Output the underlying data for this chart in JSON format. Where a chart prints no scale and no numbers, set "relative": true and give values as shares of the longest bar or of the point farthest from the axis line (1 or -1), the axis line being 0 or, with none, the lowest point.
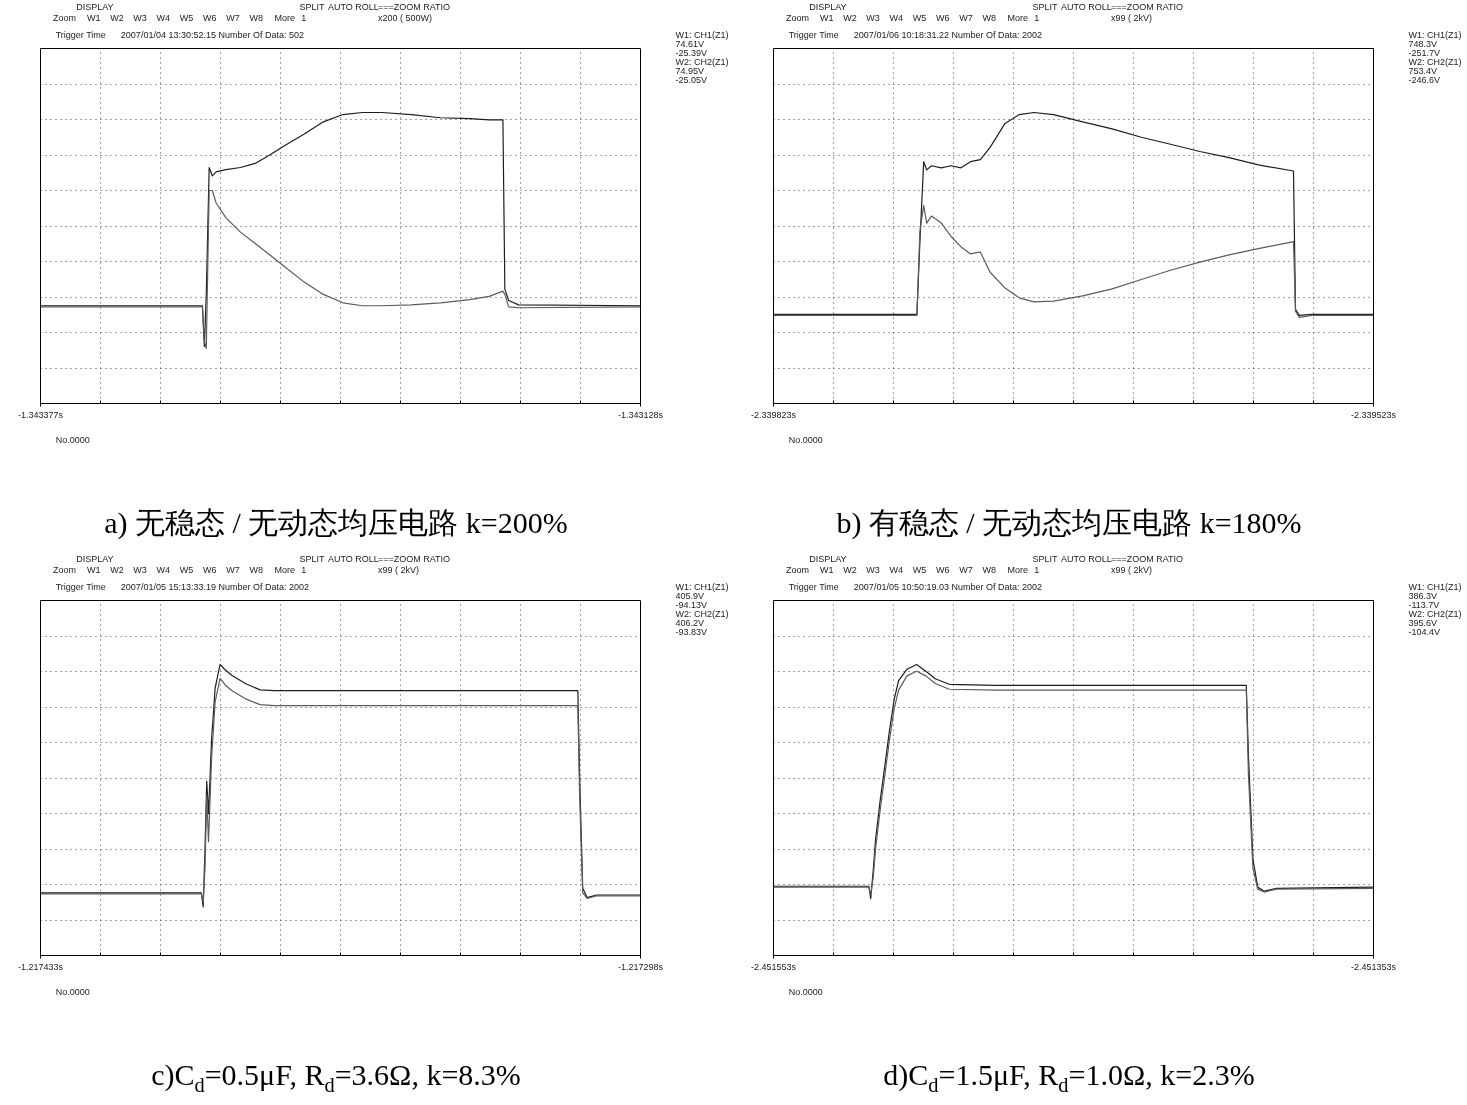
{
  "chart_data": [
    {
      "type": "line",
      "title": "a) 无稳态 / 无动态均压电路 k=200%",
      "relative": true,
      "tick_labels": "x",
      "grid": true,
      "x": [
        -1.343377,
        -1.3433098,
        -1.343309,
        -1.3433082,
        -1.343307,
        -1.3433057,
        -1.3433041,
        -1.3433001,
        -1.343294,
        -1.3432879,
        -1.3432819,
        -1.3432758,
        -1.3432677,
        -1.3432596,
        -1.3432515,
        -1.3432434,
        -1.3432353,
        -1.3432231,
        -1.343211,
        -1.3431989,
        -1.3431908,
        -1.3431851,
        -1.3431843,
        -1.3431827,
        -1.3431786,
        -1.343128
      ],
      "xlim": [
        -1.343377,
        -1.343128
      ],
      "xticks": [
        {
          "value": -1.343377,
          "label": "-1.343377s"
        },
        {
          "value": -1.3433521,
          "label": null
        },
        {
          "value": -1.3433272,
          "label": null
        },
        {
          "value": -1.3433023,
          "label": null
        },
        {
          "value": -1.3432774,
          "label": null
        },
        {
          "value": -1.3432525,
          "label": null
        },
        {
          "value": -1.3432276,
          "label": null
        },
        {
          "value": -1.3432027,
          "label": null
        },
        {
          "value": -1.3431778,
          "label": null
        },
        {
          "value": -1.3431529,
          "label": null
        },
        {
          "value": -1.343128,
          "label": "-1.343128s"
        }
      ],
      "series": [
        {
          "color": "#1e1e1e",
          "values": [
            0.336,
            0.336,
            0.196,
            0.375,
            0.811,
            0.782,
            0.796,
            0.804,
            0.811,
            0.825,
            0.854,
            0.886,
            0.925,
            0.968,
            0.993,
            1.0,
            1.0,
            0.993,
            0.982,
            0.979,
            0.975,
            0.975,
            0.393,
            0.354,
            0.339,
            0.336
          ]
        },
        {
          "color": "#5c5c5c",
          "values": [
            0.332,
            0.332,
            0.214,
            0.189,
            0.732,
            0.732,
            0.689,
            0.639,
            0.589,
            0.55,
            0.511,
            0.471,
            0.418,
            0.375,
            0.346,
            0.336,
            0.336,
            0.339,
            0.346,
            0.357,
            0.368,
            0.386,
            0.375,
            0.332,
            0.329,
            0.332
          ]
        }
      ],
      "annotations": [
        "Zoom",
        "DISPLAY",
        "W1",
        "W2",
        "W3",
        "W4",
        "W5",
        "W6",
        "W7",
        "W8",
        "More",
        "SPLIT",
        "1",
        "AUTO ROLL",
        "===ZOOM RATIO",
        "x200 ( 500W)",
        "Trigger Time",
        "2007/01/04 13:30:52.15 Number Of Data: 502",
        "W1: CH1(Z1)",
        "74.61V",
        "-25.39V",
        "W2: CH2(Z1)",
        "74.95V",
        "-25.05V",
        "No.0000"
      ]
    },
    {
      "type": "line",
      "title": "b) 有稳态 / 无动态均压电路 k=180%",
      "relative": true,
      "tick_labels": "x",
      "grid": true,
      "x": [
        -2.339823,
        -2.3397513,
        -2.3397498,
        -2.3397479,
        -2.3397464,
        -2.339744,
        -2.3397391,
        -2.3397342,
        -2.3397293,
        -2.3397245,
        -2.3397196,
        -2.3397147,
        -2.3397074,
        -2.3397001,
        -2.3396928,
        -2.339683,
        -2.3396684,
        -2.3396537,
        -2.3396391,
        -2.3396245,
        -2.3396098,
        -2.3395952,
        -2.3395806,
        -2.339563,
        -2.339562,
        -2.3395601,
        -2.3395537,
        -2.339523
      ],
      "xlim": [
        -2.339823,
        -2.339523
      ],
      "xticks": [
        {
          "value": -2.339823,
          "label": "-2.339823s"
        },
        {
          "value": -2.339793,
          "label": null
        },
        {
          "value": -2.339763,
          "label": null
        },
        {
          "value": -2.339733,
          "label": null
        },
        {
          "value": -2.339703,
          "label": null
        },
        {
          "value": -2.339673,
          "label": null
        },
        {
          "value": -2.339643,
          "label": null
        },
        {
          "value": -2.339613,
          "label": null
        },
        {
          "value": -2.339583,
          "label": null
        },
        {
          "value": -2.339553,
          "label": null
        },
        {
          "value": -2.339523,
          "label": "-2.339523s"
        }
      ],
      "series": [
        {
          "color": "#1e1e1e",
          "values": [
            0.306,
            0.306,
            0.556,
            0.831,
            0.803,
            0.817,
            0.81,
            0.817,
            0.81,
            0.831,
            0.838,
            0.88,
            0.961,
            0.993,
            1.0,
            0.993,
            0.968,
            0.944,
            0.915,
            0.891,
            0.866,
            0.845,
            0.82,
            0.799,
            0.324,
            0.303,
            0.306,
            0.306
          ]
        },
        {
          "color": "#5c5c5c",
          "values": [
            0.303,
            0.303,
            0.592,
            0.68,
            0.62,
            0.644,
            0.62,
            0.574,
            0.539,
            0.514,
            0.521,
            0.451,
            0.398,
            0.363,
            0.349,
            0.352,
            0.37,
            0.394,
            0.426,
            0.458,
            0.486,
            0.511,
            0.532,
            0.556,
            0.317,
            0.296,
            0.303,
            0.303
          ]
        }
      ],
      "annotations": [
        "Zoom",
        "DISPLAY",
        "W1",
        "W2",
        "W3",
        "W4",
        "W5",
        "W6",
        "W7",
        "W8",
        "More",
        "SPLIT",
        "1",
        "AUTO ROLL",
        "===ZOOM RATIO",
        "x99 ( 2kV)",
        "Trigger Time",
        "2007/01/06 10:18:31.22 Number Of Data: 2002",
        "W1: CH1(Z1)",
        "748.3V",
        "-251.7V",
        "W2: CH2(Z1)",
        "753.4V",
        "-246.6V",
        "No.0000"
      ]
    },
    {
      "type": "line",
      "title": "c)C$_{d}$=0.5μF, R$_{d}$=3.6Ω, k=8.3%",
      "relative": true,
      "tick_labels": "x",
      "grid": true,
      "x": [
        -1.217433,
        -1.2173968,
        -1.2173964,
        -1.217396,
        -1.2173956,
        -1.2173952,
        -1.2173945,
        -1.2173937,
        -1.2173926,
        -1.2173914,
        -1.2173899,
        -1.2173867,
        -1.2173836,
        -1.2173804,
        -1.217351,
        -1.2173121,
        -1.2173117,
        -1.217311,
        -1.21731,
        -1.2173079,
        -1.217298
      ],
      "xlim": [
        -1.217433,
        -1.217298
      ],
      "xticks": [
        {
          "value": -1.217433,
          "label": "-1.217433s"
        },
        {
          "value": -1.2174195,
          "label": null
        },
        {
          "value": -1.217406,
          "label": null
        },
        {
          "value": -1.2173925,
          "label": null
        },
        {
          "value": -1.217379,
          "label": null
        },
        {
          "value": -1.2173655,
          "label": null
        },
        {
          "value": -1.217352,
          "label": null
        },
        {
          "value": -1.2173385,
          "label": null
        },
        {
          "value": -1.217325,
          "label": null
        },
        {
          "value": -1.2173115,
          "label": null
        },
        {
          "value": -1.217298,
          "label": "-1.217298s"
        }
      ],
      "series": [
        {
          "color": "#1e1e1e",
          "values": [
            0.215,
            0.215,
            0.167,
            0.359,
            0.599,
            0.487,
            0.744,
            0.92,
            1.0,
            0.981,
            0.962,
            0.933,
            0.913,
            0.91,
            0.91,
            0.91,
            0.615,
            0.231,
            0.199,
            0.208,
            0.208
          ]
        },
        {
          "color": "#5c5c5c",
          "values": [
            0.212,
            0.212,
            0.183,
            0.295,
            0.551,
            0.391,
            0.679,
            0.872,
            0.952,
            0.929,
            0.91,
            0.881,
            0.862,
            0.859,
            0.859,
            0.859,
            0.551,
            0.215,
            0.196,
            0.205,
            0.205
          ]
        }
      ],
      "annotations": [
        "Zoom",
        "DISPLAY",
        "W1",
        "W2",
        "W3",
        "W4",
        "W5",
        "W6",
        "W7",
        "W8",
        "More",
        "SPLIT",
        "1",
        "AUTO ROLL",
        "===ZOOM RATIO",
        "x99 ( 2kV)",
        "Trigger Time",
        "2007/01/05 15:13:33.19 Number Of Data: 2002",
        "W1: CH1(Z1)",
        "405.9V",
        "-94.13V",
        "W2: CH2(Z1)",
        "406.2V",
        "-93.83V",
        "No.0000"
      ]
    },
    {
      "type": "line",
      "title": "d)C$_{d}$=1.5μF, R$_{d}$=1.0Ω, k=2.3%",
      "relative": true,
      "tick_labels": "x",
      "grid": true,
      "x": [
        -2.451553,
        -2.4515212,
        -2.4515206,
        -2.4515197,
        -2.451519,
        -2.4515175,
        -2.4515159,
        -2.4515144,
        -2.4515128,
        -2.4515113,
        -2.4515085,
        -2.4515053,
        -2.4515022,
        -2.4514991,
        -2.4514944,
        -2.4514789,
        -2.4513954,
        -2.4513947,
        -2.4513932,
        -2.4513916,
        -2.4513894,
        -2.4513854,
        -2.451353
      ],
      "xlim": [
        -2.451553,
        -2.451353
      ],
      "xticks": [
        {
          "value": -2.451553,
          "label": "-2.451553s"
        },
        {
          "value": -2.451533,
          "label": null
        },
        {
          "value": -2.451513,
          "label": null
        },
        {
          "value": -2.451493,
          "label": null
        },
        {
          "value": -2.451473,
          "label": null
        },
        {
          "value": -2.451453,
          "label": null
        },
        {
          "value": -2.451433,
          "label": null
        },
        {
          "value": -2.451413,
          "label": null
        },
        {
          "value": -2.451393,
          "label": null
        },
        {
          "value": -2.451373,
          "label": null
        },
        {
          "value": -2.451353,
          "label": "-2.451353s"
        }
      ],
      "series": [
        {
          "color": "#1e1e1e",
          "values": [
            0.238,
            0.238,
            0.195,
            0.3,
            0.397,
            0.528,
            0.651,
            0.769,
            0.879,
            0.945,
            0.984,
            1.0,
            0.977,
            0.951,
            0.932,
            0.928,
            0.928,
            0.691,
            0.332,
            0.235,
            0.221,
            0.231,
            0.235
          ]
        },
        {
          "color": "#5c5c5c",
          "values": [
            0.235,
            0.235,
            0.208,
            0.274,
            0.365,
            0.495,
            0.619,
            0.736,
            0.847,
            0.912,
            0.961,
            0.977,
            0.961,
            0.935,
            0.915,
            0.912,
            0.912,
            0.625,
            0.3,
            0.228,
            0.218,
            0.228,
            0.231
          ]
        }
      ],
      "annotations": [
        "Zoom",
        "DISPLAY",
        "W1",
        "W2",
        "W3",
        "W4",
        "W5",
        "W6",
        "W7",
        "W8",
        "More",
        "SPLIT",
        "1",
        "AUTO ROLL",
        "===ZOOM RATIO",
        "x99 ( 2kV)",
        "Trigger Time",
        "2007/01/05 10:50:19.03 Number Of Data: 2002",
        "W1: CH1(Z1)",
        "386.3V",
        "-113.7V",
        "W2: CH2(Z1)",
        "395.6V",
        "-104.4V",
        "No.0000"
      ]
    }
  ]
}
